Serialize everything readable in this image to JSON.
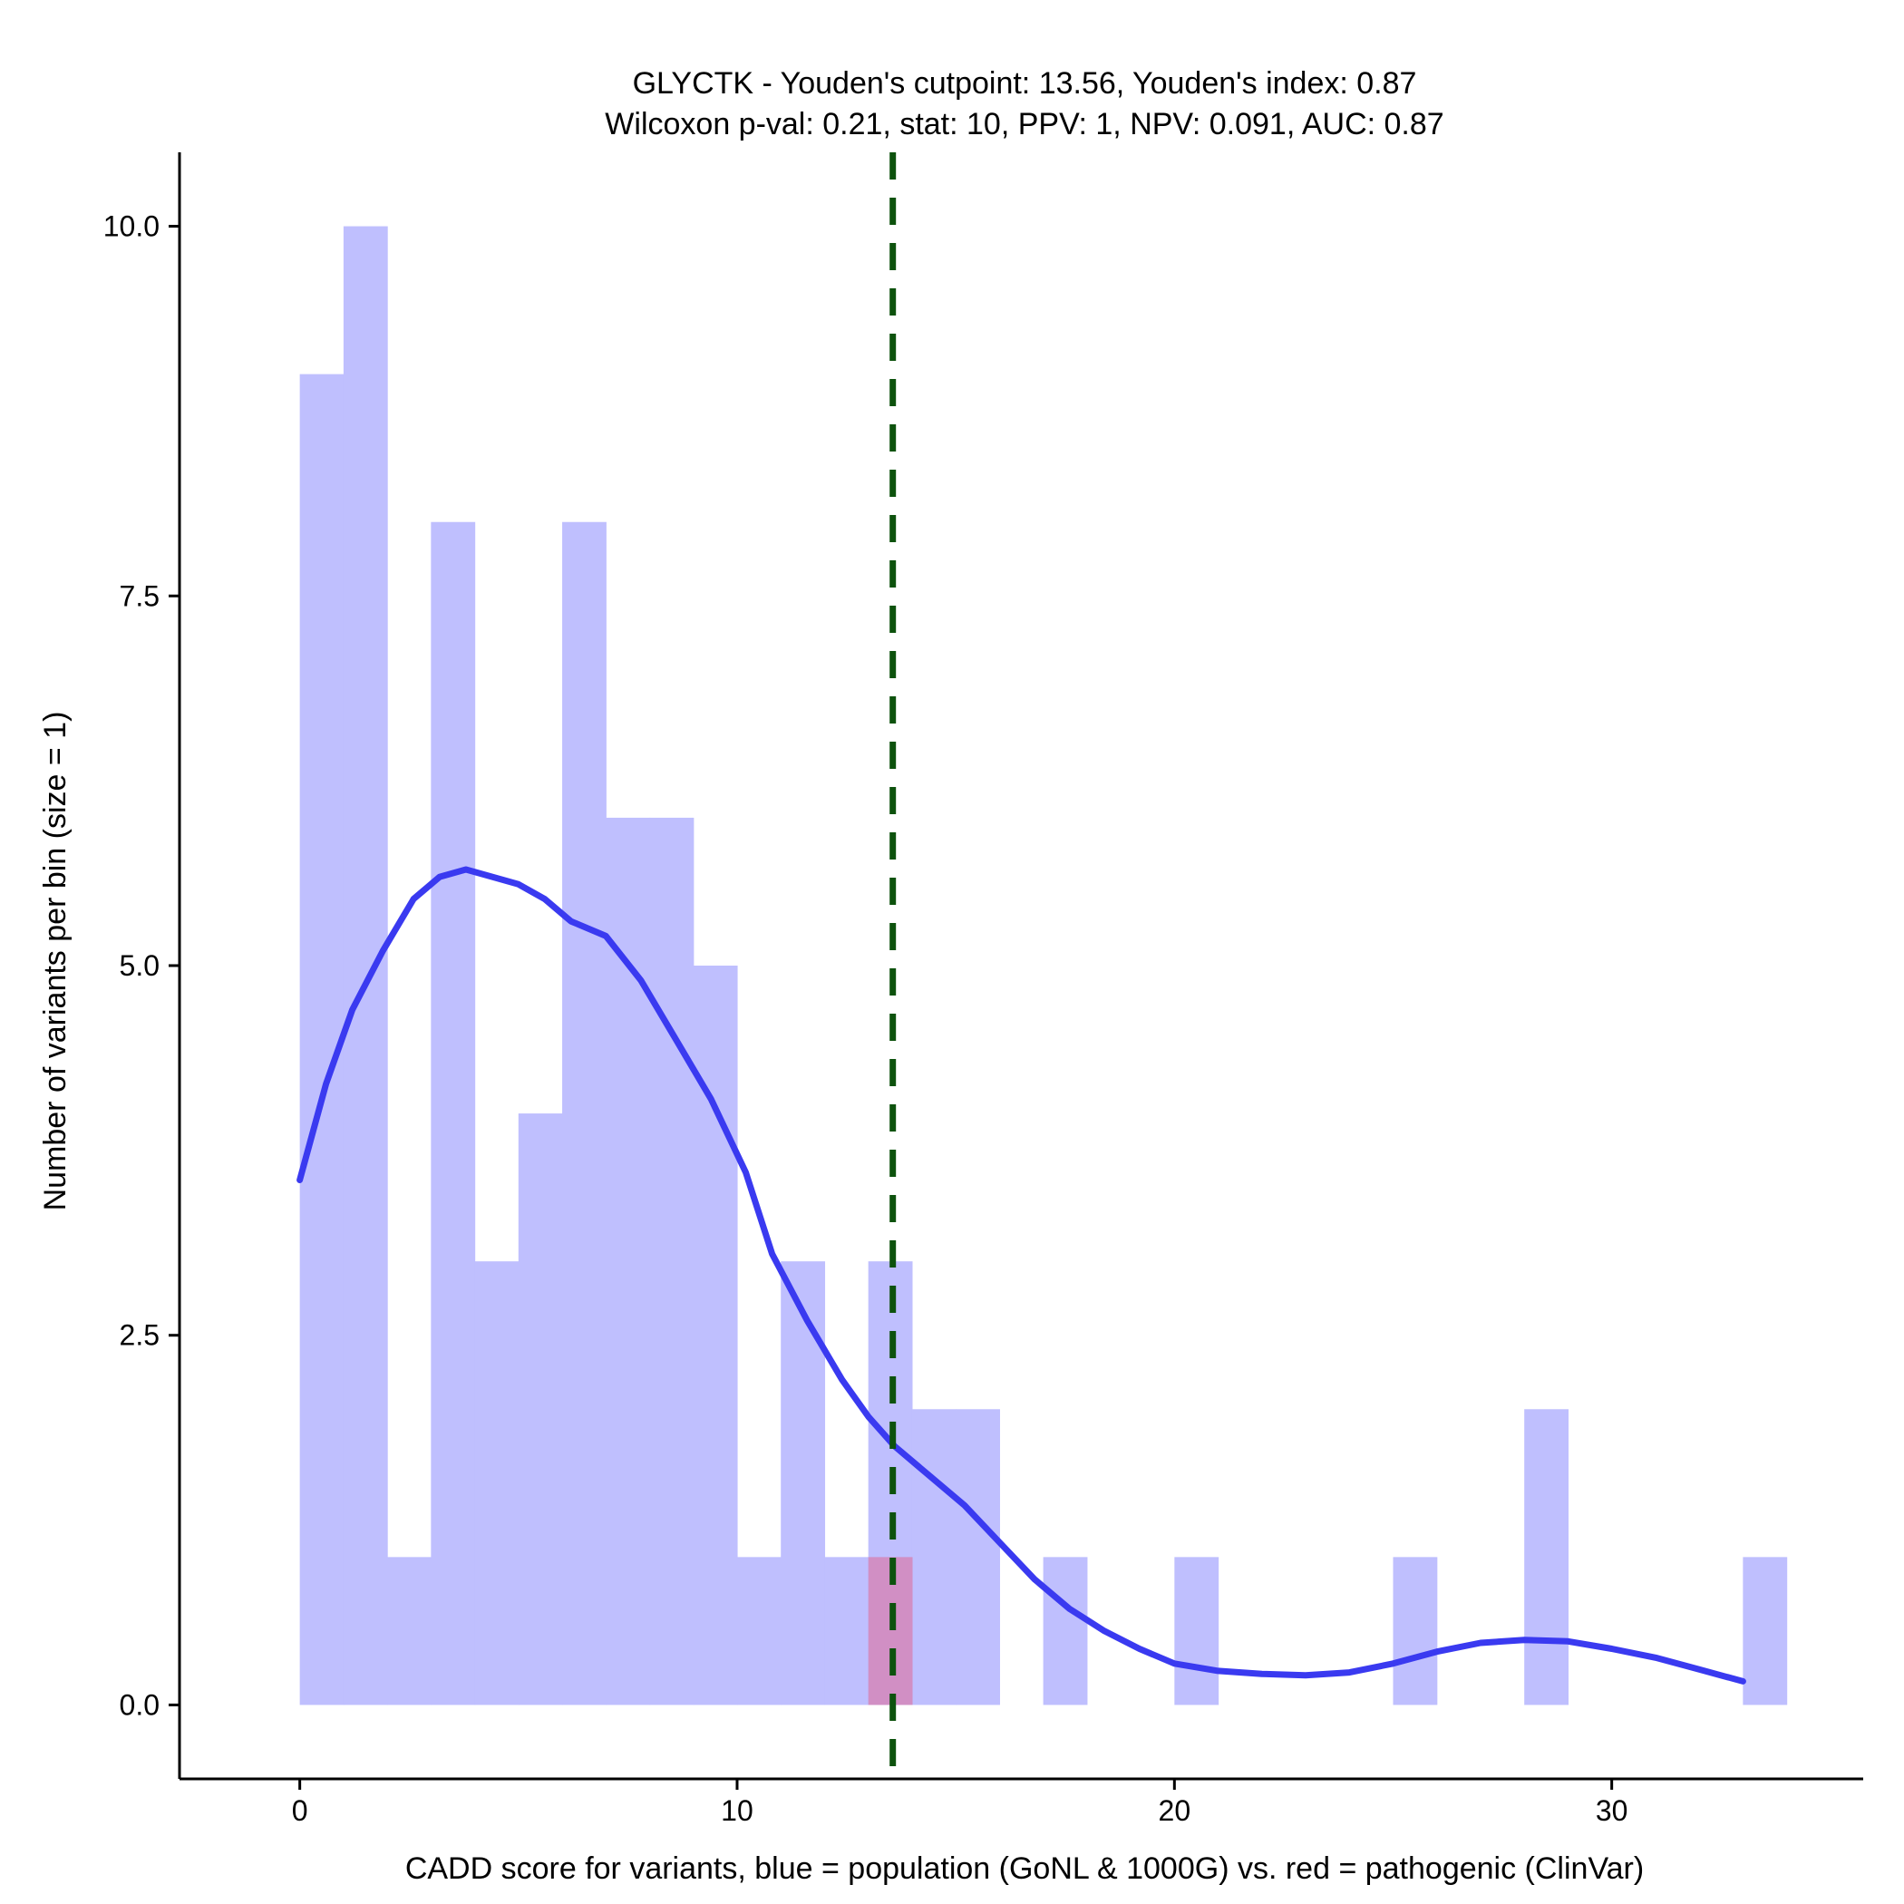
{
  "chart_data": {
    "type": "bar",
    "title": "GLYCTK - Youden's cutpoint: 13.56, Youden's index: 0.87",
    "subtitle": "Wilcoxon p-val: 0.21, stat: 10, PPV: 1, NPV: 0.091, AUC: 0.87",
    "xlabel": "CADD score for variants, blue = population (GoNL & 1000G) vs. red = pathogenic (ClinVar)",
    "ylabel": "Number of variants per bin (size = 1)",
    "xlim": [
      -2.75,
      35.75
    ],
    "ylim": [
      -0.5,
      10.5
    ],
    "x_ticks": [
      0,
      10,
      20,
      30
    ],
    "x_tick_labels": [
      "0",
      "10",
      "20",
      "30"
    ],
    "y_ticks": [
      0,
      2.5,
      5,
      7.5,
      10
    ],
    "y_tick_labels": [
      "0.0",
      "2.5",
      "5.0",
      "7.5",
      "10.0"
    ],
    "bin_width": 1,
    "cutpoint": 13.56,
    "colors": {
      "population": "#bfbffe",
      "pathogenic": "#d18fc4",
      "density": "#3a3af0",
      "cutpoint": "#0d520d"
    },
    "series": [
      {
        "name": "population (GoNL & 1000G)",
        "bin_starts": [
          0,
          1,
          2,
          3,
          4,
          5,
          6,
          7,
          8,
          9,
          10,
          11,
          12,
          13,
          14,
          15,
          17,
          20,
          25,
          28,
          33
        ],
        "values": [
          9,
          10,
          1,
          8,
          3,
          4,
          8,
          6,
          6,
          5,
          1,
          3,
          1,
          3,
          2,
          2,
          1,
          1,
          1,
          2,
          1
        ]
      },
      {
        "name": "pathogenic (ClinVar)",
        "bin_starts": [
          13
        ],
        "values": [
          1
        ]
      }
    ],
    "density_curve": {
      "x": [
        0,
        0.6,
        1.2,
        1.9,
        2.6,
        3.2,
        3.8,
        4.4,
        5.0,
        5.6,
        6.2,
        7.0,
        7.8,
        8.6,
        9.4,
        10.2,
        10.8,
        11.6,
        12.4,
        13.0,
        13.6,
        14.4,
        15.2,
        16.0,
        16.8,
        17.6,
        18.4,
        19.2,
        20.0,
        21.0,
        22.0,
        23.0,
        24.0,
        25.0,
        26.0,
        27.0,
        28.0,
        29.0,
        30.0,
        31.0,
        32.0,
        33.0
      ],
      "y": [
        3.55,
        4.2,
        4.7,
        5.1,
        5.45,
        5.6,
        5.65,
        5.6,
        5.55,
        5.45,
        5.3,
        5.2,
        4.9,
        4.5,
        4.1,
        3.6,
        3.05,
        2.6,
        2.2,
        1.95,
        1.75,
        1.55,
        1.35,
        1.1,
        0.85,
        0.65,
        0.5,
        0.38,
        0.28,
        0.23,
        0.21,
        0.2,
        0.22,
        0.28,
        0.36,
        0.42,
        0.44,
        0.43,
        0.38,
        0.32,
        0.24,
        0.16
      ]
    }
  }
}
